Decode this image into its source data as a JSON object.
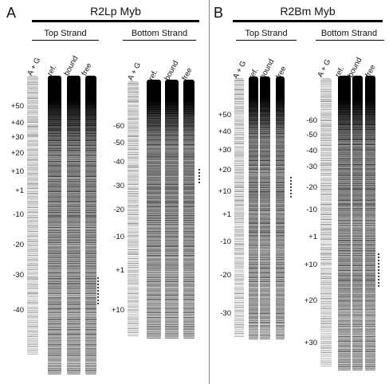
{
  "panels": [
    {
      "letter": "A",
      "title": "R2Lp Myb",
      "strands": [
        {
          "name": "Top Strand",
          "lanes": [
            "A + G",
            "ref.",
            "bound",
            "free"
          ],
          "positions": [
            "+50",
            "+40",
            "+30",
            "+20",
            "+10",
            "+1",
            "-10",
            "-20",
            "-30",
            "-40"
          ]
        },
        {
          "name": "Bottom Strand",
          "lanes": [
            "A + G",
            "ref.",
            "bound",
            "free"
          ],
          "positions": [
            "-60",
            "-50",
            "-40",
            "-30",
            "-20",
            "-10",
            "+1",
            "+10"
          ]
        }
      ]
    },
    {
      "letter": "B",
      "title": "R2Bm Myb",
      "strands": [
        {
          "name": "Top Strand",
          "lanes": [
            "A + G",
            "ref.",
            "bound",
            "free"
          ],
          "positions": [
            "+50",
            "+40",
            "+30",
            "+20",
            "+10",
            "+1",
            "-10",
            "-20",
            "-30"
          ]
        },
        {
          "name": "Bottom Strand",
          "lanes": [
            "A + G",
            "ref.",
            "bound",
            "free"
          ],
          "positions": [
            "-60",
            "-50",
            "-40",
            "-30",
            "-20",
            "-10",
            "+1",
            "+10",
            "+20",
            "+30"
          ]
        }
      ]
    }
  ]
}
